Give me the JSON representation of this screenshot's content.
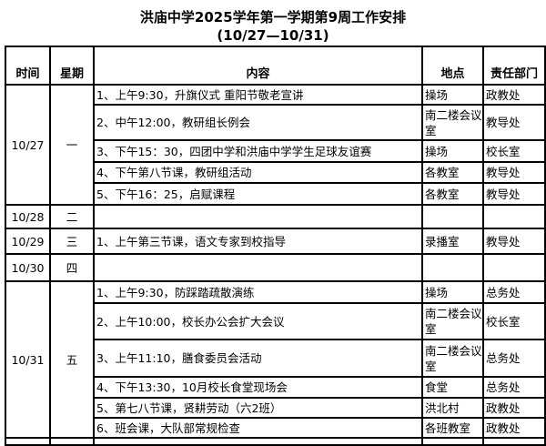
{
  "title": "洪庙中学2025学年第一学期第9周工作安排",
  "subtitle": "(10/27—10/31)",
  "headers": {
    "date": "时间",
    "weekday": "星期",
    "content": "内容",
    "location": "地点",
    "department": "责任部门"
  },
  "days": [
    {
      "date": "10/27",
      "weekday": "一",
      "items": [
        {
          "content": "1、上午9:30，升旗仪式 重阳节敬老宣讲",
          "location": "操场",
          "department": "政教处"
        },
        {
          "content": "2、中午12:00，教研组长例会",
          "location": "南二楼会议室",
          "department": "教导处"
        },
        {
          "content": "3、下午15：30，四团中学和洪庙中学学生足球友谊赛",
          "location": "操场",
          "department": "校长室"
        },
        {
          "content": "4、下午第八节课，教研组活动",
          "location": "各教室",
          "department": "教导处"
        },
        {
          "content": "5、下午16：25，启赋课程",
          "location": "各教室",
          "department": "教导处"
        }
      ]
    },
    {
      "date": "10/28",
      "weekday": "二",
      "items": [
        {
          "content": "",
          "location": "",
          "department": ""
        }
      ]
    },
    {
      "date": "10/29",
      "weekday": "三",
      "items": [
        {
          "content": "1、上午第三节课，语文专家到校指导",
          "location": "录播室",
          "department": "教导处"
        }
      ]
    },
    {
      "date": "10/30",
      "weekday": "四",
      "items": [
        {
          "content": "",
          "location": "",
          "department": ""
        }
      ]
    },
    {
      "date": "10/31",
      "weekday": "五",
      "items": [
        {
          "content": "1、上午9:30，防踩踏疏散演练",
          "location": "操场",
          "department": "总务处"
        },
        {
          "content": "2、上午10:00，校长办公会扩大会议",
          "location": "南二楼会议室",
          "department": "校长室"
        },
        {
          "content": "3、上午11:10，膳食委员会活动",
          "location": "南二楼会议室",
          "department": "总务处"
        },
        {
          "content": "4、下午13:30，10月校长食堂现场会",
          "location": "食堂",
          "department": "总务处"
        },
        {
          "content": "5、第七八节课，贤耕劳动（六2班）",
          "location": "洪北村",
          "department": "政教处"
        },
        {
          "content": "6、班会课，大队部常规检查",
          "location": "各班教室",
          "department": "政教处"
        }
      ]
    }
  ]
}
